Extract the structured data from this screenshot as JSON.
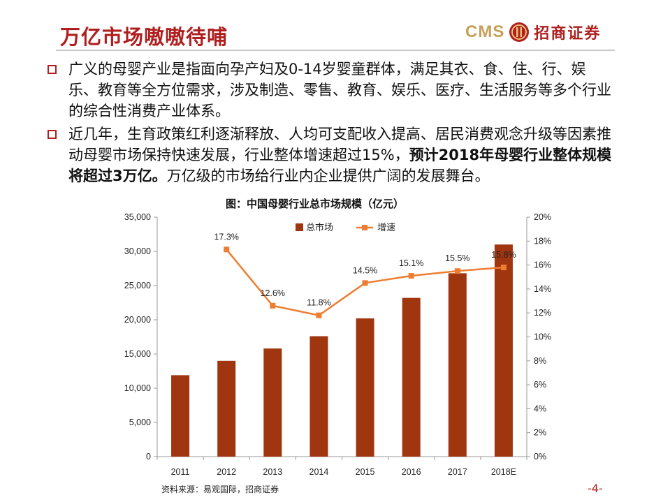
{
  "slide": {
    "title": "万亿市场嗷嗷待哺",
    "page": "-4-",
    "logo": {
      "cms": "CMS",
      "name": "招商证券"
    }
  },
  "bullets": [
    {
      "text": "广义的母婴产业是指面向孕产妇及0-14岁婴童群体，满足其衣、食、住、行、娱乐、教育等全方位需求，涉及制造、零售、教育、娱乐、医疗、生活服务等多个行业的综合性消费产业体系。"
    },
    {
      "text_before": "近几年，生育政策红利逐渐释放、人均可支配收入提高、居民消费观念升级等因素推动母婴市场保持快速发展，行业整体增速超过15%，",
      "text_bold": "预计2018年母婴行业整体规模将超过3万亿。",
      "text_after": "万亿级的市场给行业内企业提供广阔的发展舞台。"
    }
  ],
  "chart_title": "图：中国母婴行业总市场规模（亿元）",
  "source": "资料来源：易观国际，招商证券",
  "chart_data": {
    "type": "bar",
    "categories": [
      "2011",
      "2012",
      "2013",
      "2014",
      "2015",
      "2016",
      "2017",
      "2018E"
    ],
    "series": [
      {
        "name": "总市场",
        "type": "bar",
        "axis": "left",
        "color": "#a0360f",
        "values": [
          11900,
          14000,
          15800,
          17600,
          20200,
          23200,
          26800,
          31000
        ]
      },
      {
        "name": "增速",
        "type": "line",
        "axis": "right",
        "color": "#ed7d31",
        "values": [
          null,
          17.3,
          12.6,
          11.8,
          14.5,
          15.1,
          15.5,
          15.8
        ],
        "labels": [
          "",
          "17.3%",
          "12.6%",
          "11.8%",
          "14.5%",
          "15.1%",
          "15.5%",
          "15.8%"
        ]
      }
    ],
    "y_left": {
      "min": 0,
      "max": 35000,
      "ticks": [
        "0",
        "5,000",
        "10,000",
        "15,000",
        "20,000",
        "25,000",
        "30,000",
        "35,000"
      ]
    },
    "y_right": {
      "min": 0,
      "max": 20,
      "ticks": [
        "0%",
        "2%",
        "4%",
        "6%",
        "8%",
        "10%",
        "12%",
        "14%",
        "16%",
        "18%",
        "20%"
      ]
    },
    "legend": "top-center",
    "grid": false
  }
}
